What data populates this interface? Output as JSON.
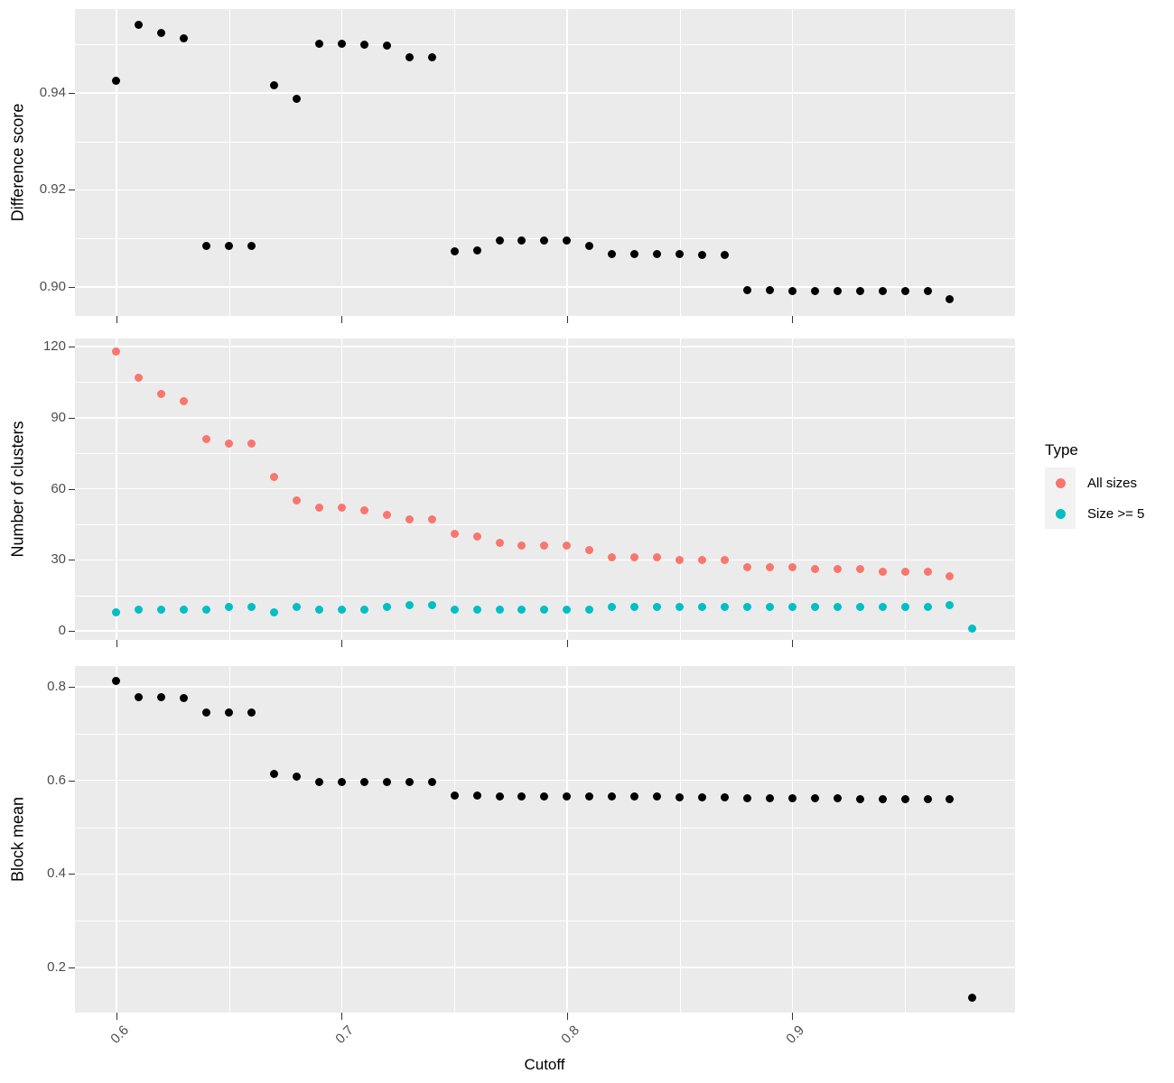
{
  "figure": {
    "x_axis": {
      "title": "Cutoff",
      "ticks": [
        0.6,
        0.7,
        0.8,
        0.9
      ],
      "tick_labels": [
        "0.6",
        "0.7",
        "0.8",
        "0.9"
      ],
      "minor_ticks": [
        0.65,
        0.75,
        0.85,
        0.95
      ],
      "xlim": [
        0.5816,
        0.9989
      ]
    },
    "legend": {
      "title": "Type",
      "items": [
        {
          "label": "All sizes",
          "color": "#F8766D"
        },
        {
          "label": "Size >= 5",
          "color": "#00BFC4"
        }
      ]
    },
    "panel_background": "#EBEBEB",
    "gridline_color": "#FFFFFF",
    "point_color_default": "#000000"
  },
  "chart_data": [
    {
      "type": "scatter",
      "title": "",
      "xlabel": "Cutoff",
      "ylabel": "Difference score",
      "grid": true,
      "legend_position": "none",
      "y_ticks": [
        0.9,
        0.92,
        0.94
      ],
      "y_tick_labels": [
        "0.90",
        "0.92",
        "0.94"
      ],
      "y_minor": [
        0.91,
        0.93,
        0.95
      ],
      "ylim": [
        0.894,
        0.9573
      ],
      "series": [
        {
          "name": "Difference score",
          "color": "#000000",
          "x": [
            0.6,
            0.61,
            0.62,
            0.63,
            0.64,
            0.65,
            0.66,
            0.67,
            0.68,
            0.69,
            0.7,
            0.71,
            0.72,
            0.73,
            0.74,
            0.75,
            0.76,
            0.77,
            0.78,
            0.79,
            0.8,
            0.81,
            0.82,
            0.83,
            0.84,
            0.85,
            0.86,
            0.87,
            0.88,
            0.89,
            0.9,
            0.91,
            0.92,
            0.93,
            0.94,
            0.95,
            0.96,
            0.97
          ],
          "y": [
            0.9426,
            0.9541,
            0.9523,
            0.9513,
            0.9085,
            0.9085,
            0.9085,
            0.9415,
            0.9387,
            0.9502,
            0.9502,
            0.95,
            0.9498,
            0.9474,
            0.9474,
            0.9074,
            0.9076,
            0.9095,
            0.9095,
            0.9095,
            0.9095,
            0.9084,
            0.9067,
            0.9067,
            0.9067,
            0.9067,
            0.9066,
            0.9066,
            0.8994,
            0.8994,
            0.8992,
            0.8992,
            0.8992,
            0.8992,
            0.8991,
            0.8991,
            0.8991,
            0.8974
          ]
        }
      ]
    },
    {
      "type": "scatter",
      "title": "",
      "xlabel": "Cutoff",
      "ylabel": "Number of clusters",
      "grid": true,
      "legend_position": "right",
      "y_ticks": [
        0,
        30,
        60,
        90,
        120
      ],
      "y_tick_labels": [
        "0",
        "30",
        "60",
        "90",
        "120"
      ],
      "y_minor": [
        15,
        45,
        75,
        105
      ],
      "ylim": [
        -3.81,
        123.43
      ],
      "series": [
        {
          "name": "All sizes",
          "color": "#F8766D",
          "x": [
            0.6,
            0.61,
            0.62,
            0.63,
            0.64,
            0.65,
            0.66,
            0.67,
            0.68,
            0.69,
            0.7,
            0.71,
            0.72,
            0.73,
            0.74,
            0.75,
            0.76,
            0.77,
            0.78,
            0.79,
            0.8,
            0.81,
            0.82,
            0.83,
            0.84,
            0.85,
            0.86,
            0.87,
            0.88,
            0.89,
            0.9,
            0.91,
            0.92,
            0.93,
            0.94,
            0.95,
            0.96,
            0.97
          ],
          "y": [
            118,
            107,
            100,
            97,
            81,
            79,
            79,
            65,
            55,
            52,
            52,
            51,
            49,
            47,
            47,
            41,
            40,
            37,
            36,
            36,
            36,
            34,
            31,
            31,
            31,
            30,
            30,
            30,
            27,
            27,
            27,
            26,
            26,
            26,
            25,
            25,
            25,
            23
          ]
        },
        {
          "name": "Size >= 5",
          "color": "#00BFC4",
          "x": [
            0.6,
            0.61,
            0.62,
            0.63,
            0.64,
            0.65,
            0.66,
            0.67,
            0.68,
            0.69,
            0.7,
            0.71,
            0.72,
            0.73,
            0.74,
            0.75,
            0.76,
            0.77,
            0.78,
            0.79,
            0.8,
            0.81,
            0.82,
            0.83,
            0.84,
            0.85,
            0.86,
            0.87,
            0.88,
            0.89,
            0.9,
            0.91,
            0.92,
            0.93,
            0.94,
            0.95,
            0.96,
            0.97,
            0.98
          ],
          "y": [
            8,
            9,
            9,
            9,
            9,
            10,
            10,
            8,
            10,
            9,
            9,
            9,
            10,
            11,
            11,
            9,
            9,
            9,
            9,
            9,
            9,
            9,
            10,
            10,
            10,
            10,
            10,
            10,
            10,
            10,
            10,
            10,
            10,
            10,
            10,
            10,
            10,
            11,
            1
          ]
        }
      ]
    },
    {
      "type": "scatter",
      "title": "",
      "xlabel": "Cutoff",
      "ylabel": "Block mean",
      "grid": true,
      "legend_position": "none",
      "y_ticks": [
        0.2,
        0.4,
        0.6,
        0.8
      ],
      "y_tick_labels": [
        "0.2",
        "0.4",
        "0.6",
        "0.8"
      ],
      "y_minor": [
        0.3,
        0.5,
        0.7
      ],
      "ylim": [
        0.1036,
        0.8444
      ],
      "series": [
        {
          "name": "Block mean",
          "color": "#000000",
          "x": [
            0.6,
            0.61,
            0.62,
            0.63,
            0.64,
            0.65,
            0.66,
            0.67,
            0.68,
            0.69,
            0.7,
            0.71,
            0.72,
            0.73,
            0.74,
            0.75,
            0.76,
            0.77,
            0.78,
            0.79,
            0.8,
            0.81,
            0.82,
            0.83,
            0.84,
            0.85,
            0.86,
            0.87,
            0.88,
            0.89,
            0.9,
            0.91,
            0.92,
            0.93,
            0.94,
            0.95,
            0.96,
            0.97,
            0.98
          ],
          "y": [
            0.812,
            0.777,
            0.777,
            0.776,
            0.746,
            0.746,
            0.746,
            0.613,
            0.609,
            0.597,
            0.597,
            0.597,
            0.597,
            0.596,
            0.596,
            0.568,
            0.568,
            0.566,
            0.566,
            0.566,
            0.566,
            0.565,
            0.565,
            0.565,
            0.565,
            0.564,
            0.564,
            0.563,
            0.562,
            0.562,
            0.561,
            0.561,
            0.561,
            0.56,
            0.56,
            0.56,
            0.56,
            0.56,
            0.136
          ]
        }
      ]
    }
  ]
}
